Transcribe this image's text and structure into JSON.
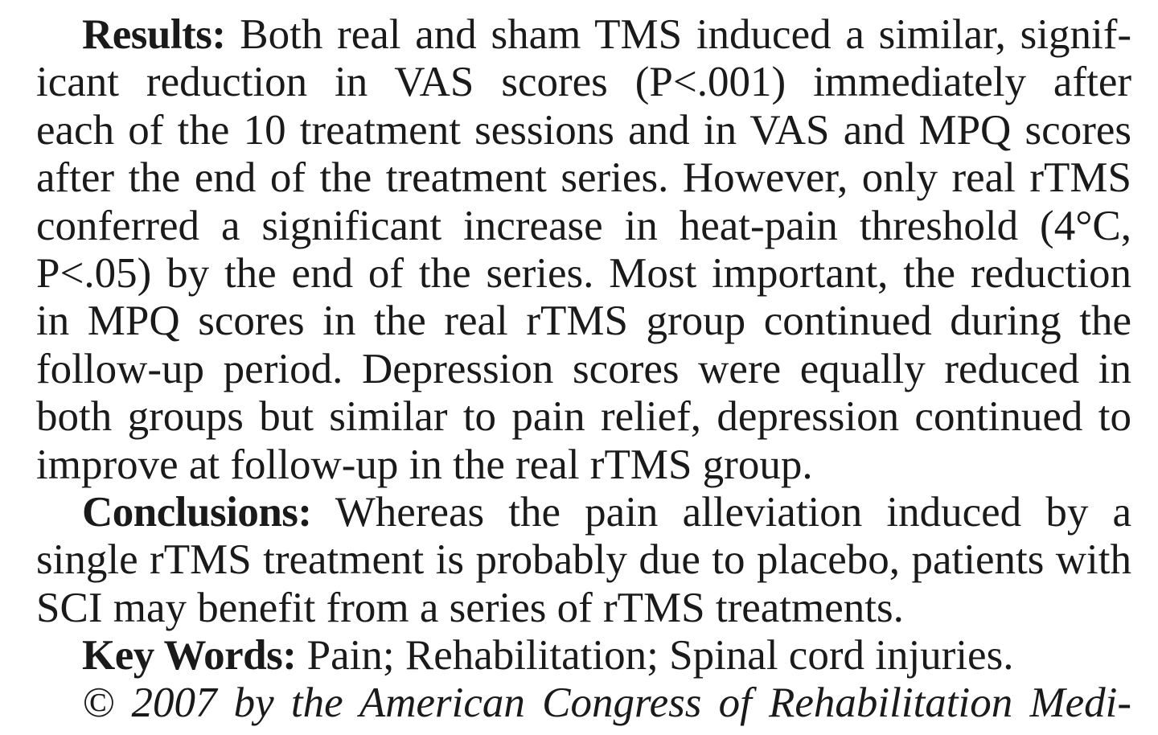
{
  "paragraphs": [
    {
      "name": "results",
      "label": "Results:",
      "lines": [
        {
          "text": " Both real and sham TMS induced a similar, signif-",
          "justify": true
        },
        {
          "text": "icant reduction in VAS scores (P<.001) immediately after",
          "justify": true
        },
        {
          "text": "each of the 10 treatment sessions and in VAS and MPQ scores",
          "justify": true
        },
        {
          "text": "after the end of the treatment series. However, only real rTMS",
          "justify": true
        },
        {
          "text": "conferred a significant increase in heat-pain threshold (4°C,",
          "justify": true
        },
        {
          "text": "P<.05) by the end of the series. Most important, the reduction",
          "justify": true
        },
        {
          "text": "in MPQ scores in the real rTMS group continued during the",
          "justify": true
        },
        {
          "text": "follow-up period. Depression scores were equally reduced in",
          "justify": true
        },
        {
          "text": "both groups but similar to pain relief, depression continued to",
          "justify": true
        },
        {
          "text": "improve at follow-up in the real rTMS group.",
          "justify": false
        }
      ]
    },
    {
      "name": "conclusions",
      "label": "Conclusions:",
      "lines": [
        {
          "text": " Whereas the pain alleviation induced by a",
          "justify": true
        },
        {
          "text": "single rTMS treatment is probably due to placebo, patients with",
          "justify": true
        },
        {
          "text": "SCI may benefit from a series of rTMS treatments.",
          "justify": false
        }
      ]
    },
    {
      "name": "key-words",
      "label": "Key Words:",
      "lines": [
        {
          "text": " Pain; Rehabilitation; Spinal cord injuries.",
          "justify": false
        }
      ]
    },
    {
      "name": "copyright",
      "label": "",
      "italic": true,
      "lines": [
        {
          "text": "© 2007 by the American Congress of Rehabilitation Medi-",
          "justify": true
        }
      ]
    }
  ]
}
